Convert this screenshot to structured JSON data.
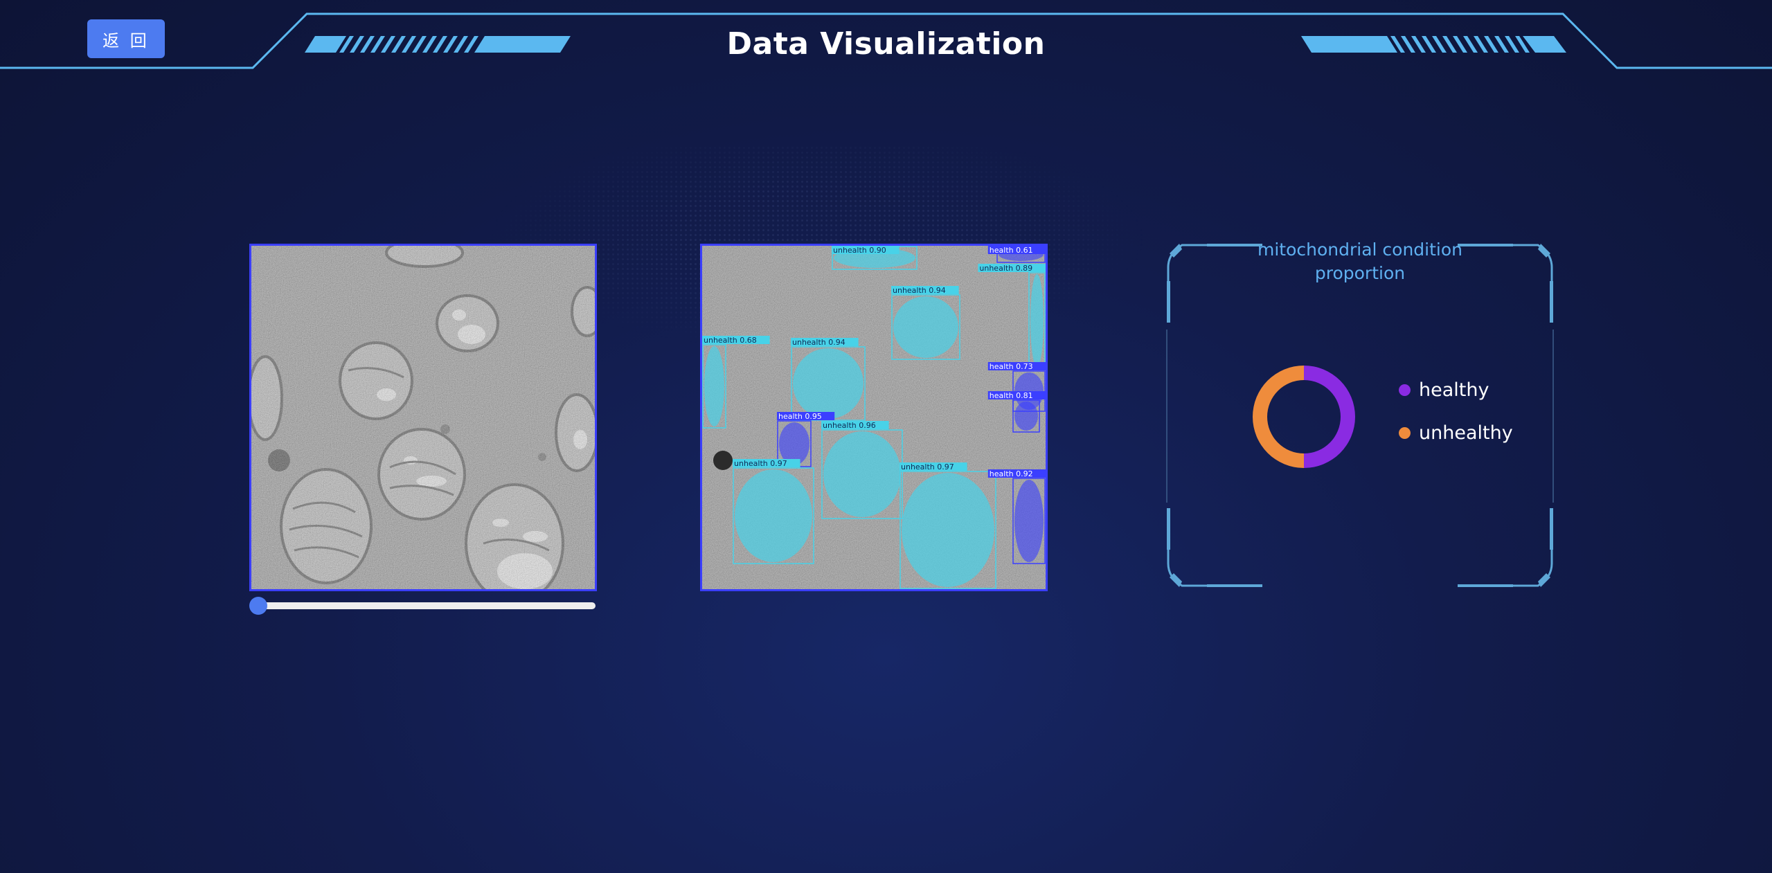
{
  "header": {
    "title": "Data Visualization",
    "back_label": "返 回",
    "frame_color": "#5bb8f0"
  },
  "viewer": {
    "slider_value": 0
  },
  "detections": [
    {
      "label": "unhealth",
      "score": "0.90",
      "class": "unhealthy"
    },
    {
      "label": "health",
      "score": "0.61",
      "class": "healthy"
    },
    {
      "label": "unhealth",
      "score": "0.89",
      "class": "unhealthy"
    },
    {
      "label": "unhealth",
      "score": "0.94",
      "class": "unhealthy"
    },
    {
      "label": "unhealth",
      "score": "0.68",
      "class": "unhealthy"
    },
    {
      "label": "unhealth",
      "score": "0.94",
      "class": "unhealthy"
    },
    {
      "label": "health",
      "score": "0.73",
      "class": "healthy"
    },
    {
      "label": "health",
      "score": "0.81",
      "class": "healthy"
    },
    {
      "label": "health",
      "score": "0.95",
      "class": "healthy"
    },
    {
      "label": "unhealth",
      "score": "0.96",
      "class": "unhealthy"
    },
    {
      "label": "unhealth",
      "score": "0.97",
      "class": "unhealthy"
    },
    {
      "label": "unhealth",
      "score": "0.97",
      "class": "unhealthy"
    },
    {
      "label": "health",
      "score": "0.92",
      "class": "healthy"
    }
  ],
  "colors": {
    "healthy_box": "#3b3fff",
    "unhealthy_box": "#48d2e8",
    "panel_border": "#3b3fff",
    "chart_frame": "#5ea8d8",
    "slider_handle": "#4d7bf0"
  },
  "chart_data": {
    "type": "pie",
    "title_line1": "mitochondrial condition",
    "title_line2": "proportion",
    "donut": true,
    "slices": [
      {
        "name": "healthy",
        "value": 50,
        "color": "#8a2be2"
      },
      {
        "name": "unhealthy",
        "value": 50,
        "color": "#ef8c3c"
      }
    ],
    "legend_position": "right"
  }
}
